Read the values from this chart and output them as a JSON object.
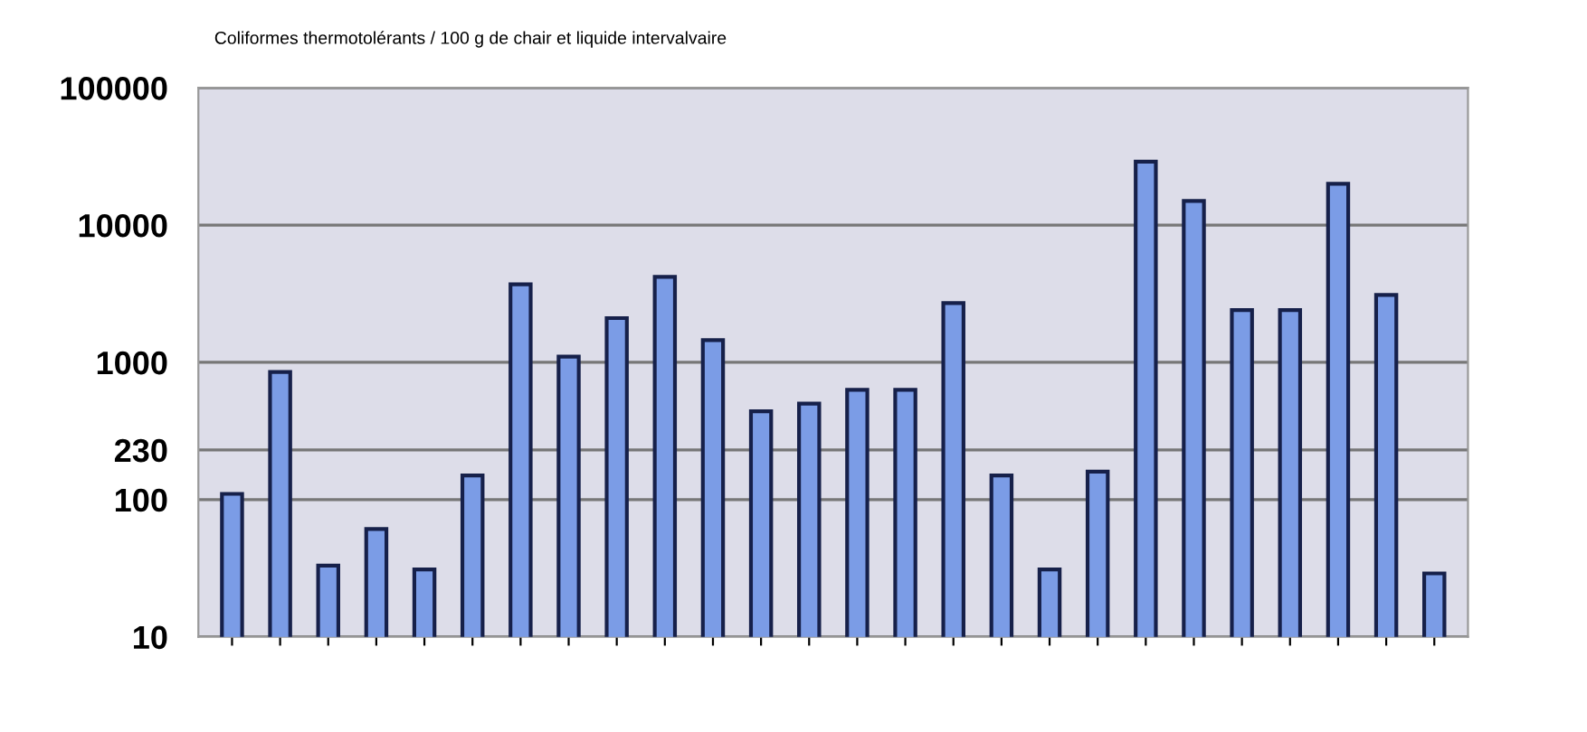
{
  "chart_data": {
    "type": "bar",
    "title": "Coliformes thermotolérants / 100 g de chair et liquide intervalvaire",
    "categories": [
      null,
      null,
      null,
      null,
      null,
      null,
      null,
      null,
      null,
      null,
      null,
      null,
      null,
      null,
      null,
      null,
      null,
      null,
      null,
      null,
      null,
      null,
      null,
      null,
      null,
      null
    ],
    "values": [
      110,
      850,
      33,
      61,
      31,
      150,
      3700,
      1100,
      2100,
      4200,
      1450,
      440,
      500,
      630,
      630,
      2700,
      150,
      31,
      160,
      29000,
      15000,
      2400,
      2400,
      20000,
      3100,
      29
    ],
    "color": "#7b9ce6",
    "log": "y",
    "ylim": [
      10,
      100000
    ],
    "yticks": [
      10,
      100,
      230,
      1000,
      10000,
      100000
    ],
    "grid": "y"
  }
}
